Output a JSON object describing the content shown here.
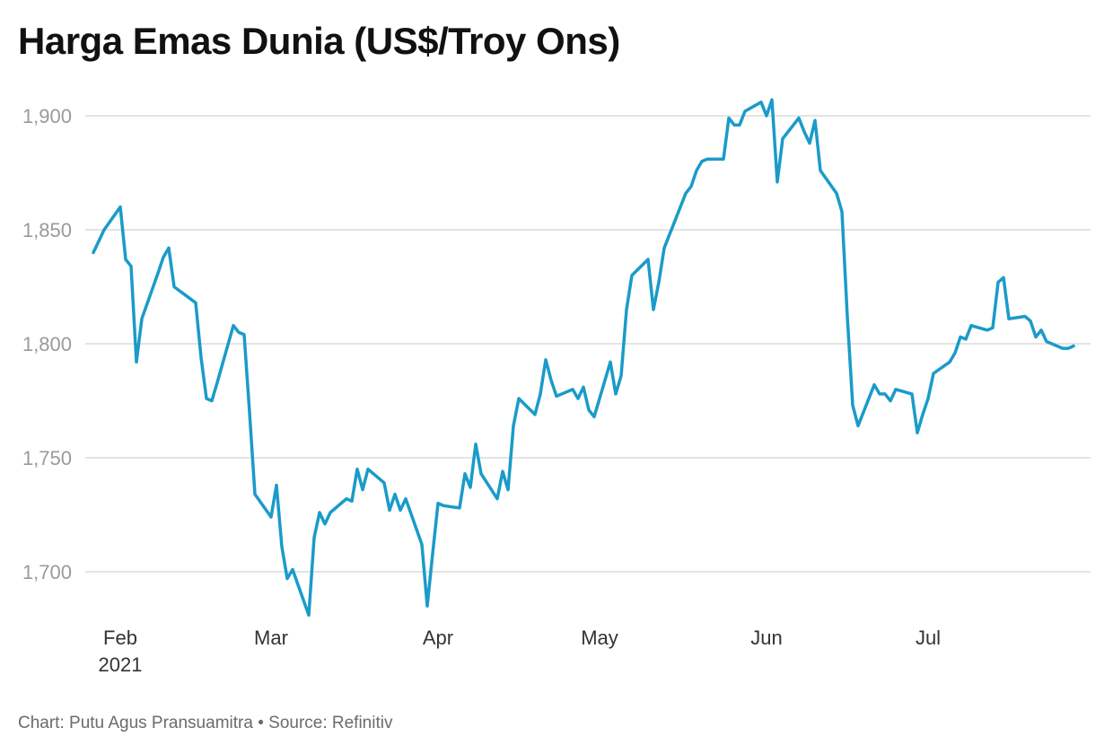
{
  "title": "Harga Emas Dunia (US$/Troy Ons)",
  "footer": {
    "chart_by": "Chart: Putu Agus Pransuamitra",
    "separator": " • ",
    "source": "Source: Refinitiv"
  },
  "colors": {
    "line": "#1a9bc9",
    "grid": "#dcdcdc",
    "y_tick": "#9a9a9a",
    "x_tick": "#333333"
  },
  "chart_data": {
    "type": "line",
    "title": "Harga Emas Dunia (US$/Troy Ons)",
    "xlabel": "",
    "ylabel": "",
    "ylim": [
      1680,
      1910
    ],
    "yticks": [
      1700,
      1750,
      1800,
      1850,
      1900
    ],
    "ytick_labels": [
      "1,700",
      "1,750",
      "1,800",
      "1,850",
      "1,900"
    ],
    "xticks": [
      {
        "date": "2021-02-01",
        "label": "Feb",
        "sublabel": "2021"
      },
      {
        "date": "2021-03-01",
        "label": "Mar",
        "sublabel": ""
      },
      {
        "date": "2021-04-01",
        "label": "Apr",
        "sublabel": ""
      },
      {
        "date": "2021-05-01",
        "label": "May",
        "sublabel": ""
      },
      {
        "date": "2021-06-01",
        "label": "Jun",
        "sublabel": ""
      },
      {
        "date": "2021-07-01",
        "label": "Jul",
        "sublabel": ""
      }
    ],
    "grid": true,
    "legend": "none",
    "series": [
      {
        "points": [
          [
            "2021-01-27",
            1840
          ],
          [
            "2021-01-28",
            1845
          ],
          [
            "2021-01-29",
            1850
          ],
          [
            "2021-02-01",
            1860
          ],
          [
            "2021-02-02",
            1837
          ],
          [
            "2021-02-03",
            1834
          ],
          [
            "2021-02-04",
            1792
          ],
          [
            "2021-02-05",
            1811
          ],
          [
            "2021-02-08",
            1831
          ],
          [
            "2021-02-09",
            1838
          ],
          [
            "2021-02-10",
            1842
          ],
          [
            "2021-02-11",
            1825
          ],
          [
            "2021-02-15",
            1818
          ],
          [
            "2021-02-16",
            1794
          ],
          [
            "2021-02-17",
            1776
          ],
          [
            "2021-02-18",
            1775
          ],
          [
            "2021-02-19",
            1783
          ],
          [
            "2021-02-22",
            1808
          ],
          [
            "2021-02-23",
            1805
          ],
          [
            "2021-02-24",
            1804
          ],
          [
            "2021-02-25",
            1770
          ],
          [
            "2021-02-26",
            1734
          ],
          [
            "2021-03-01",
            1724
          ],
          [
            "2021-03-02",
            1738
          ],
          [
            "2021-03-03",
            1711
          ],
          [
            "2021-03-04",
            1697
          ],
          [
            "2021-03-05",
            1701
          ],
          [
            "2021-03-08",
            1681
          ],
          [
            "2021-03-09",
            1715
          ],
          [
            "2021-03-10",
            1726
          ],
          [
            "2021-03-11",
            1721
          ],
          [
            "2021-03-12",
            1726
          ],
          [
            "2021-03-15",
            1732
          ],
          [
            "2021-03-16",
            1731
          ],
          [
            "2021-03-17",
            1745
          ],
          [
            "2021-03-18",
            1736
          ],
          [
            "2021-03-19",
            1745
          ],
          [
            "2021-03-22",
            1739
          ],
          [
            "2021-03-23",
            1727
          ],
          [
            "2021-03-24",
            1734
          ],
          [
            "2021-03-25",
            1727
          ],
          [
            "2021-03-26",
            1732
          ],
          [
            "2021-03-29",
            1712
          ],
          [
            "2021-03-30",
            1685
          ],
          [
            "2021-03-31",
            1708
          ],
          [
            "2021-04-01",
            1730
          ],
          [
            "2021-04-02",
            1729
          ],
          [
            "2021-04-05",
            1728
          ],
          [
            "2021-04-06",
            1743
          ],
          [
            "2021-04-07",
            1737
          ],
          [
            "2021-04-08",
            1756
          ],
          [
            "2021-04-09",
            1743
          ],
          [
            "2021-04-12",
            1732
          ],
          [
            "2021-04-13",
            1744
          ],
          [
            "2021-04-14",
            1736
          ],
          [
            "2021-04-15",
            1764
          ],
          [
            "2021-04-16",
            1776
          ],
          [
            "2021-04-19",
            1769
          ],
          [
            "2021-04-20",
            1778
          ],
          [
            "2021-04-21",
            1793
          ],
          [
            "2021-04-22",
            1784
          ],
          [
            "2021-04-23",
            1777
          ],
          [
            "2021-04-26",
            1780
          ],
          [
            "2021-04-27",
            1776
          ],
          [
            "2021-04-28",
            1781
          ],
          [
            "2021-04-29",
            1771
          ],
          [
            "2021-04-30",
            1768
          ],
          [
            "2021-05-03",
            1792
          ],
          [
            "2021-05-04",
            1778
          ],
          [
            "2021-05-05",
            1786
          ],
          [
            "2021-05-06",
            1815
          ],
          [
            "2021-05-07",
            1830
          ],
          [
            "2021-05-10",
            1837
          ],
          [
            "2021-05-11",
            1815
          ],
          [
            "2021-05-12",
            1827
          ],
          [
            "2021-05-13",
            1842
          ],
          [
            "2021-05-17",
            1866
          ],
          [
            "2021-05-18",
            1869
          ],
          [
            "2021-05-19",
            1876
          ],
          [
            "2021-05-20",
            1880
          ],
          [
            "2021-05-21",
            1881
          ],
          [
            "2021-05-24",
            1881
          ],
          [
            "2021-05-25",
            1899
          ],
          [
            "2021-05-26",
            1896
          ],
          [
            "2021-05-27",
            1896
          ],
          [
            "2021-05-28",
            1902
          ],
          [
            "2021-05-31",
            1906
          ],
          [
            "2021-06-01",
            1900
          ],
          [
            "2021-06-02",
            1907
          ],
          [
            "2021-06-03",
            1871
          ],
          [
            "2021-06-04",
            1890
          ],
          [
            "2021-06-07",
            1899
          ],
          [
            "2021-06-08",
            1893
          ],
          [
            "2021-06-09",
            1888
          ],
          [
            "2021-06-10",
            1898
          ],
          [
            "2021-06-11",
            1876
          ],
          [
            "2021-06-14",
            1866
          ],
          [
            "2021-06-15",
            1858
          ],
          [
            "2021-06-16",
            1812
          ],
          [
            "2021-06-17",
            1773
          ],
          [
            "2021-06-18",
            1764
          ],
          [
            "2021-06-21",
            1782
          ],
          [
            "2021-06-22",
            1778
          ],
          [
            "2021-06-23",
            1778
          ],
          [
            "2021-06-24",
            1775
          ],
          [
            "2021-06-25",
            1780
          ],
          [
            "2021-06-28",
            1778
          ],
          [
            "2021-06-29",
            1761
          ],
          [
            "2021-06-30",
            1769
          ],
          [
            "2021-07-01",
            1776
          ],
          [
            "2021-07-02",
            1787
          ],
          [
            "2021-07-05",
            1792
          ],
          [
            "2021-07-06",
            1796
          ],
          [
            "2021-07-07",
            1803
          ],
          [
            "2021-07-08",
            1802
          ],
          [
            "2021-07-09",
            1808
          ],
          [
            "2021-07-12",
            1806
          ],
          [
            "2021-07-13",
            1807
          ],
          [
            "2021-07-14",
            1827
          ],
          [
            "2021-07-15",
            1829
          ],
          [
            "2021-07-16",
            1811
          ],
          [
            "2021-07-19",
            1812
          ],
          [
            "2021-07-20",
            1810
          ],
          [
            "2021-07-21",
            1803
          ],
          [
            "2021-07-22",
            1806
          ],
          [
            "2021-07-23",
            1801
          ],
          [
            "2021-07-26",
            1798
          ],
          [
            "2021-07-27",
            1798
          ],
          [
            "2021-07-28",
            1799
          ]
        ]
      }
    ]
  }
}
